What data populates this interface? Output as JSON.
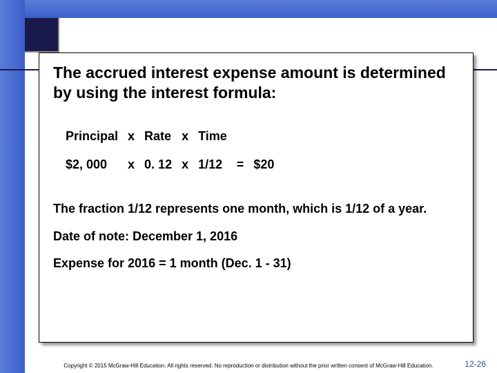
{
  "title": "The accrued interest expense amount is determined by using the interest formula:",
  "formula": {
    "header": {
      "c1": "Principal",
      "c2": "x",
      "c3": "Rate",
      "c4": "x",
      "c5": "Time",
      "c6": "",
      "c7": ""
    },
    "values": {
      "c1": "$2, 000",
      "c2": "x",
      "c3": "0. 12",
      "c4": "x",
      "c5": "1/12",
      "c6": "=",
      "c7": "$20"
    }
  },
  "explanation": "The fraction 1/12 represents one month, which is 1/12 of a year.",
  "date_of_note": "Date of note: December 1, 2016",
  "expense_line": "Expense for 2016 = 1 month (Dec. 1 - 31)",
  "copyright": "Copyright © 2015 McGraw-Hill Education. All rights reserved. No reproduction or distribution without the prior written consent of McGraw-Hill Education.",
  "page_number": "12-26",
  "colors": {
    "blue_gradient_start": "#5a7dd8",
    "blue_gradient_end": "#3a5fc8",
    "dark_navy": "#1a1a4d",
    "text": "#000000",
    "page_num": "#2a4aa8"
  }
}
